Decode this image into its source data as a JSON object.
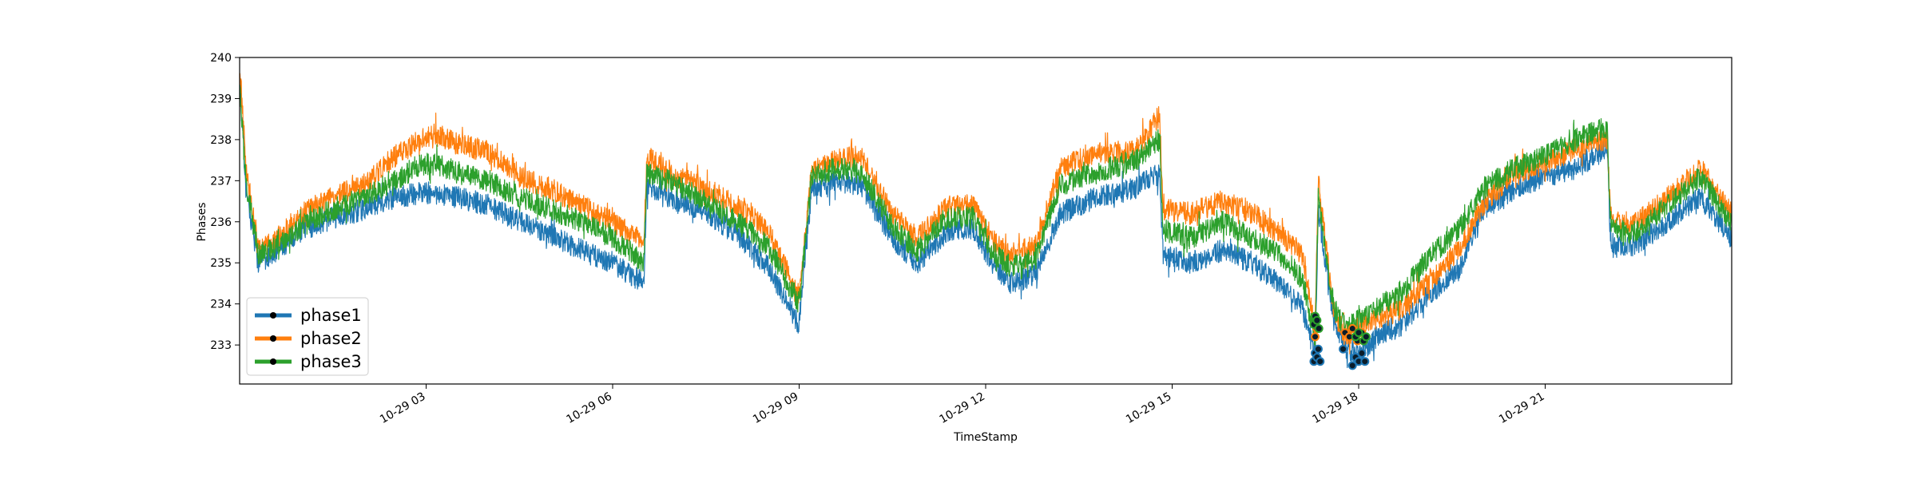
{
  "chart_data": {
    "type": "line",
    "xlabel": "TimeStamp",
    "ylabel": "Phases",
    "x_range": [
      0.0,
      24.0
    ],
    "ylim": [
      232.05,
      240.0
    ],
    "y_ticks": [
      233,
      234,
      235,
      236,
      237,
      238,
      239,
      240
    ],
    "x_ticks": [
      {
        "hour": 3,
        "label": "10-29 03"
      },
      {
        "hour": 6,
        "label": "10-29 06"
      },
      {
        "hour": 9,
        "label": "10-29 09"
      },
      {
        "hour": 12,
        "label": "10-29 12"
      },
      {
        "hour": 15,
        "label": "10-29 15"
      },
      {
        "hour": 18,
        "label": "10-29 18"
      },
      {
        "hour": 21,
        "label": "10-29 21"
      }
    ],
    "legend": {
      "position": "lower-left",
      "marker": "dot"
    },
    "grid": false,
    "series": [
      {
        "name": "phase1",
        "color": "#1f77b4",
        "points": [
          [
            0.0,
            239.5
          ],
          [
            0.1,
            236.8
          ],
          [
            0.3,
            235.0
          ],
          [
            0.6,
            235.3
          ],
          [
            1.0,
            235.8
          ],
          [
            1.5,
            236.1
          ],
          [
            2.0,
            236.3
          ],
          [
            2.5,
            236.6
          ],
          [
            2.9,
            236.7
          ],
          [
            3.2,
            236.7
          ],
          [
            3.5,
            236.6
          ],
          [
            4.0,
            236.4
          ],
          [
            4.5,
            236.0
          ],
          [
            5.0,
            235.7
          ],
          [
            5.5,
            235.3
          ],
          [
            6.0,
            235.0
          ],
          [
            6.5,
            234.5
          ],
          [
            6.55,
            236.8
          ],
          [
            6.9,
            236.6
          ],
          [
            7.5,
            236.2
          ],
          [
            8.0,
            235.7
          ],
          [
            8.5,
            234.9
          ],
          [
            9.0,
            233.5
          ],
          [
            9.2,
            236.8
          ],
          [
            9.6,
            237.0
          ],
          [
            10.0,
            236.9
          ],
          [
            10.5,
            235.6
          ],
          [
            10.9,
            235.0
          ],
          [
            11.4,
            235.8
          ],
          [
            11.8,
            235.8
          ],
          [
            12.1,
            235.0
          ],
          [
            12.4,
            234.5
          ],
          [
            12.8,
            234.7
          ],
          [
            13.2,
            236.2
          ],
          [
            13.8,
            236.6
          ],
          [
            14.4,
            236.8
          ],
          [
            14.8,
            237.2
          ],
          [
            14.85,
            235.2
          ],
          [
            15.3,
            235.0
          ],
          [
            15.8,
            235.3
          ],
          [
            16.3,
            235.0
          ],
          [
            16.8,
            234.4
          ],
          [
            17.1,
            233.9
          ],
          [
            17.3,
            232.7
          ],
          [
            17.35,
            236.2
          ],
          [
            17.6,
            233.6
          ],
          [
            17.8,
            232.9
          ],
          [
            18.0,
            232.8
          ],
          [
            18.3,
            233.2
          ],
          [
            18.7,
            233.5
          ],
          [
            19.1,
            234.2
          ],
          [
            19.6,
            234.8
          ],
          [
            20.0,
            236.3
          ],
          [
            20.5,
            236.8
          ],
          [
            21.0,
            237.1
          ],
          [
            21.5,
            237.3
          ],
          [
            22.0,
            237.8
          ],
          [
            22.05,
            235.5
          ],
          [
            22.4,
            235.4
          ],
          [
            22.9,
            235.9
          ],
          [
            23.5,
            236.6
          ],
          [
            24.0,
            235.6
          ]
        ]
      },
      {
        "name": "phase2",
        "color": "#ff7f0e",
        "points": [
          [
            0.0,
            239.8
          ],
          [
            0.1,
            237.3
          ],
          [
            0.3,
            235.3
          ],
          [
            0.6,
            235.6
          ],
          [
            1.0,
            236.2
          ],
          [
            1.5,
            236.6
          ],
          [
            2.0,
            236.9
          ],
          [
            2.5,
            237.6
          ],
          [
            2.9,
            238.0
          ],
          [
            3.2,
            238.1
          ],
          [
            3.5,
            237.9
          ],
          [
            4.0,
            237.7
          ],
          [
            4.5,
            237.1
          ],
          [
            5.0,
            236.8
          ],
          [
            5.5,
            236.4
          ],
          [
            6.0,
            236.0
          ],
          [
            6.5,
            235.5
          ],
          [
            6.55,
            237.6
          ],
          [
            6.9,
            237.2
          ],
          [
            7.5,
            236.8
          ],
          [
            8.0,
            236.4
          ],
          [
            8.5,
            235.8
          ],
          [
            9.0,
            234.2
          ],
          [
            9.2,
            237.2
          ],
          [
            9.6,
            237.5
          ],
          [
            10.0,
            237.6
          ],
          [
            10.5,
            236.2
          ],
          [
            10.9,
            235.6
          ],
          [
            11.4,
            236.4
          ],
          [
            11.8,
            236.4
          ],
          [
            12.1,
            235.6
          ],
          [
            12.4,
            235.2
          ],
          [
            12.8,
            235.4
          ],
          [
            13.2,
            237.3
          ],
          [
            13.8,
            237.7
          ],
          [
            14.4,
            237.7
          ],
          [
            14.8,
            238.6
          ],
          [
            14.85,
            236.3
          ],
          [
            15.3,
            236.2
          ],
          [
            15.8,
            236.5
          ],
          [
            16.3,
            236.2
          ],
          [
            16.8,
            235.6
          ],
          [
            17.1,
            235.2
          ],
          [
            17.3,
            233.3
          ],
          [
            17.35,
            237.0
          ],
          [
            17.6,
            233.8
          ],
          [
            17.8,
            233.2
          ],
          [
            18.0,
            233.5
          ],
          [
            18.3,
            233.6
          ],
          [
            18.7,
            233.9
          ],
          [
            19.1,
            234.5
          ],
          [
            19.6,
            235.3
          ],
          [
            20.0,
            236.4
          ],
          [
            20.5,
            237.2
          ],
          [
            21.0,
            237.4
          ],
          [
            21.5,
            237.8
          ],
          [
            22.0,
            238.0
          ],
          [
            22.05,
            236.2
          ],
          [
            22.4,
            235.9
          ],
          [
            22.9,
            236.5
          ],
          [
            23.5,
            237.3
          ],
          [
            24.0,
            236.2
          ]
        ]
      },
      {
        "name": "phase3",
        "color": "#2ca02c",
        "points": [
          [
            0.0,
            239.3
          ],
          [
            0.1,
            237.0
          ],
          [
            0.3,
            235.2
          ],
          [
            0.6,
            235.4
          ],
          [
            1.0,
            235.9
          ],
          [
            1.5,
            236.3
          ],
          [
            2.0,
            236.6
          ],
          [
            2.5,
            237.0
          ],
          [
            2.9,
            237.4
          ],
          [
            3.2,
            237.4
          ],
          [
            3.5,
            237.2
          ],
          [
            4.0,
            237.0
          ],
          [
            4.5,
            236.6
          ],
          [
            5.0,
            236.3
          ],
          [
            5.5,
            236.0
          ],
          [
            6.0,
            235.6
          ],
          [
            6.5,
            235.0
          ],
          [
            6.55,
            237.2
          ],
          [
            6.9,
            237.0
          ],
          [
            7.5,
            236.5
          ],
          [
            8.0,
            236.0
          ],
          [
            8.5,
            235.4
          ],
          [
            9.0,
            234.0
          ],
          [
            9.2,
            237.1
          ],
          [
            9.6,
            237.3
          ],
          [
            10.0,
            237.2
          ],
          [
            10.5,
            235.9
          ],
          [
            10.9,
            235.3
          ],
          [
            11.4,
            236.1
          ],
          [
            11.8,
            236.1
          ],
          [
            12.1,
            235.3
          ],
          [
            12.4,
            234.9
          ],
          [
            12.8,
            235.1
          ],
          [
            13.2,
            236.9
          ],
          [
            13.8,
            237.2
          ],
          [
            14.4,
            237.5
          ],
          [
            14.8,
            238.0
          ],
          [
            14.85,
            235.8
          ],
          [
            15.3,
            235.6
          ],
          [
            15.8,
            236.0
          ],
          [
            16.3,
            235.6
          ],
          [
            16.8,
            235.1
          ],
          [
            17.1,
            234.6
          ],
          [
            17.3,
            233.1
          ],
          [
            17.35,
            236.6
          ],
          [
            17.6,
            233.9
          ],
          [
            17.8,
            233.4
          ],
          [
            18.0,
            233.6
          ],
          [
            18.3,
            233.9
          ],
          [
            18.7,
            234.3
          ],
          [
            19.1,
            235.1
          ],
          [
            19.6,
            235.8
          ],
          [
            20.0,
            236.8
          ],
          [
            20.5,
            237.3
          ],
          [
            21.0,
            237.6
          ],
          [
            21.5,
            238.0
          ],
          [
            22.0,
            238.3
          ],
          [
            22.05,
            235.9
          ],
          [
            22.4,
            235.7
          ],
          [
            22.9,
            236.3
          ],
          [
            23.5,
            237.1
          ],
          [
            24.0,
            235.9
          ]
        ]
      }
    ],
    "outlier_markers": [
      {
        "series": "phase1",
        "points": [
          [
            17.28,
            232.6
          ],
          [
            17.3,
            232.8
          ],
          [
            17.33,
            232.7
          ],
          [
            17.35,
            232.9
          ],
          [
            17.38,
            232.6
          ],
          [
            17.9,
            232.5
          ],
          [
            17.95,
            232.7
          ],
          [
            18.0,
            232.6
          ],
          [
            18.05,
            232.8
          ],
          [
            18.1,
            232.6
          ],
          [
            17.75,
            232.9
          ]
        ]
      },
      {
        "series": "phase2",
        "points": [
          [
            17.3,
            233.2
          ],
          [
            17.33,
            233.4
          ],
          [
            17.78,
            233.3
          ],
          [
            17.85,
            233.2
          ],
          [
            17.9,
            233.4
          ],
          [
            17.98,
            233.1
          ],
          [
            18.05,
            233.3
          ]
        ]
      },
      {
        "series": "phase3",
        "points": [
          [
            17.28,
            233.5
          ],
          [
            17.3,
            233.7
          ],
          [
            17.33,
            233.6
          ],
          [
            17.36,
            233.4
          ],
          [
            17.95,
            233.2
          ],
          [
            18.0,
            233.3
          ],
          [
            18.08,
            233.1
          ],
          [
            18.12,
            233.2
          ]
        ]
      }
    ]
  }
}
